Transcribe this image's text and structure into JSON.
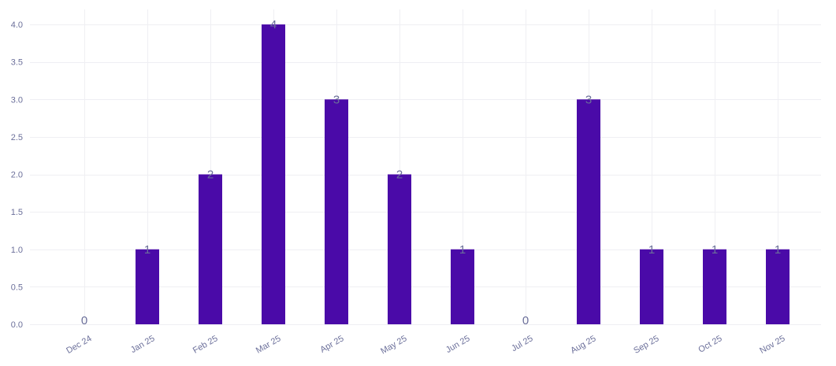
{
  "chart_data": {
    "type": "bar",
    "title": "",
    "xlabel": "",
    "ylabel": "",
    "categories": [
      "Dec 24",
      "Jan 25",
      "Feb 25",
      "Mar 25",
      "Apr 25",
      "May 25",
      "Jun 25",
      "Jul 25",
      "Aug 25",
      "Sep 25",
      "Oct 25",
      "Nov 25"
    ],
    "values": [
      0,
      1,
      2,
      4,
      3,
      2,
      1,
      0,
      3,
      1,
      1,
      1
    ],
    "ylim": [
      0,
      4.2
    ],
    "yticks": [
      0,
      0.5,
      1,
      1.5,
      2,
      2.5,
      3,
      3.5,
      4
    ],
    "ytick_labels": [
      "0.0",
      "0.5",
      "1.0",
      "1.5",
      "2.0",
      "2.5",
      "3.0",
      "3.5",
      "4.0"
    ],
    "grid": true,
    "legend": "none",
    "data_labels": true,
    "bar_color": "#4a0aa8",
    "label_color": "#6b6f9a",
    "grid_color": "#efeff3"
  }
}
